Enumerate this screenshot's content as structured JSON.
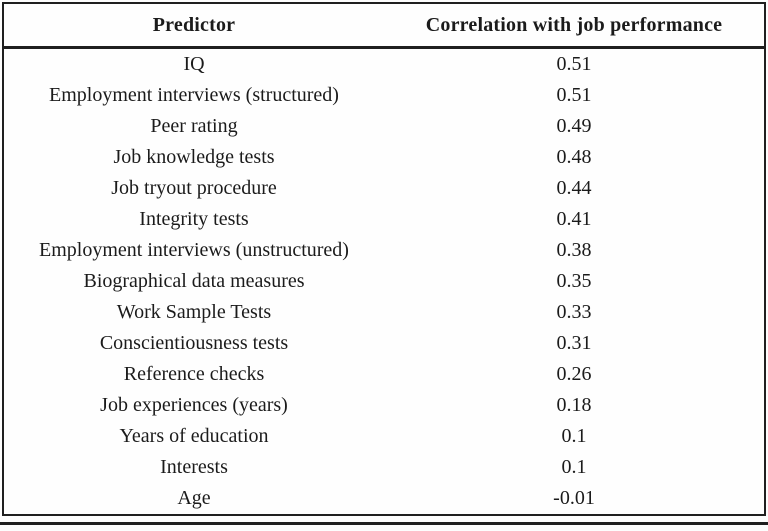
{
  "table": {
    "columns": [
      "Predictor",
      "Correlation with job performance"
    ],
    "rows": [
      {
        "predictor": "IQ",
        "correlation": "0.51"
      },
      {
        "predictor": "Employment interviews (structured)",
        "correlation": "0.51"
      },
      {
        "predictor": "Peer rating",
        "correlation": "0.49"
      },
      {
        "predictor": "Job knowledge tests",
        "correlation": "0.48"
      },
      {
        "predictor": "Job tryout procedure",
        "correlation": "0.44"
      },
      {
        "predictor": "Integrity tests",
        "correlation": "0.41"
      },
      {
        "predictor": "Employment interviews (unstructured)",
        "correlation": "0.38"
      },
      {
        "predictor": "Biographical data measures",
        "correlation": "0.35"
      },
      {
        "predictor": "Work Sample Tests",
        "correlation": "0.33"
      },
      {
        "predictor": "Conscientiousness tests",
        "correlation": "0.31"
      },
      {
        "predictor": "Reference checks",
        "correlation": "0.26"
      },
      {
        "predictor": "Job experiences (years)",
        "correlation": "0.18"
      },
      {
        "predictor": "Years of education",
        "correlation": "0.1"
      },
      {
        "predictor": "Interests",
        "correlation": "0.1"
      },
      {
        "predictor": "Age",
        "correlation": "-0.01"
      }
    ]
  },
  "colors": {
    "border": "#1f1f1f",
    "text": "#1b1b1b",
    "background": "#fdfdfd"
  }
}
